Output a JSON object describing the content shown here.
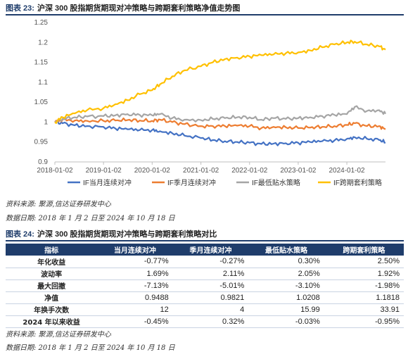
{
  "figure": {
    "tag": "图表 23:",
    "title": "沪深 300 股指期货期现对冲策略与跨期套利策略净值走势图"
  },
  "chart_data": {
    "type": "line",
    "ylim": [
      0.9,
      1.25
    ],
    "yticks": [
      "0.9",
      "0.95",
      "1",
      "1.05",
      "1.1",
      "1.15",
      "1.2",
      "1.25"
    ],
    "yticks_values": [
      0.9,
      0.95,
      1.0,
      1.05,
      1.1,
      1.15,
      1.2,
      1.25
    ],
    "xlim": [
      "2018-01-02",
      "2024-10-18"
    ],
    "xticks": [
      "2018-01-02",
      "2019-01-02",
      "2020-01-02",
      "2021-01-02",
      "2022-01-02",
      "2023-01-02",
      "2024-01-02"
    ],
    "grid": false,
    "legend_position": "bottom",
    "series": [
      {
        "name": "IF当月连续对冲",
        "color": "#4472c4",
        "points": [
          [
            "2018-01-02",
            1.0
          ],
          [
            "2018-03-01",
            0.997
          ],
          [
            "2018-06-01",
            0.992
          ],
          [
            "2018-09-01",
            0.99
          ],
          [
            "2019-01-02",
            0.988
          ],
          [
            "2019-04-01",
            0.984
          ],
          [
            "2019-07-01",
            0.982
          ],
          [
            "2019-10-01",
            0.98
          ],
          [
            "2020-01-02",
            0.98
          ],
          [
            "2020-03-01",
            0.977
          ],
          [
            "2020-06-01",
            0.972
          ],
          [
            "2020-09-01",
            0.966
          ],
          [
            "2021-01-02",
            0.96
          ],
          [
            "2021-04-01",
            0.955
          ],
          [
            "2021-07-01",
            0.952
          ],
          [
            "2021-10-01",
            0.95
          ],
          [
            "2022-01-02",
            0.948
          ],
          [
            "2022-04-01",
            0.945
          ],
          [
            "2022-07-01",
            0.946
          ],
          [
            "2022-10-01",
            0.947
          ],
          [
            "2023-01-02",
            0.948
          ],
          [
            "2023-04-01",
            0.95
          ],
          [
            "2023-07-01",
            0.952
          ],
          [
            "2023-10-01",
            0.954
          ],
          [
            "2024-01-02",
            0.958
          ],
          [
            "2024-03-01",
            0.962
          ],
          [
            "2024-06-01",
            0.958
          ],
          [
            "2024-09-01",
            0.955
          ],
          [
            "2024-10-18",
            0.9488
          ]
        ]
      },
      {
        "name": "IF季月连续对冲",
        "color": "#ed7d31",
        "points": [
          [
            "2018-01-02",
            1.0
          ],
          [
            "2018-03-01",
            1.006
          ],
          [
            "2018-06-01",
            1.004
          ],
          [
            "2018-09-01",
            1.003
          ],
          [
            "2019-01-02",
            1.003
          ],
          [
            "2019-04-01",
            1.004
          ],
          [
            "2019-07-01",
            1.005
          ],
          [
            "2019-10-01",
            1.004
          ],
          [
            "2020-01-02",
            1.003
          ],
          [
            "2020-03-01",
            1.006
          ],
          [
            "2020-06-01",
            1.0
          ],
          [
            "2020-09-01",
            0.995
          ],
          [
            "2021-01-02",
            0.99
          ],
          [
            "2021-04-01",
            0.99
          ],
          [
            "2021-07-01",
            0.99
          ],
          [
            "2021-10-01",
            0.991
          ],
          [
            "2022-01-02",
            0.99
          ],
          [
            "2022-04-01",
            0.985
          ],
          [
            "2022-07-01",
            0.988
          ],
          [
            "2022-10-01",
            0.987
          ],
          [
            "2023-01-02",
            0.985
          ],
          [
            "2023-04-01",
            0.986
          ],
          [
            "2023-07-01",
            0.988
          ],
          [
            "2023-10-01",
            0.99
          ],
          [
            "2024-01-02",
            0.993
          ],
          [
            "2024-03-01",
            0.997
          ],
          [
            "2024-06-01",
            0.99
          ],
          [
            "2024-09-01",
            0.99
          ],
          [
            "2024-10-18",
            0.9821
          ]
        ]
      },
      {
        "name": "IF最低贴水策略",
        "color": "#a5a5a5",
        "points": [
          [
            "2018-01-02",
            1.0
          ],
          [
            "2018-03-01",
            1.008
          ],
          [
            "2018-06-01",
            1.012
          ],
          [
            "2018-09-01",
            1.014
          ],
          [
            "2019-01-02",
            1.015
          ],
          [
            "2019-04-01",
            1.017
          ],
          [
            "2019-07-01",
            1.02
          ],
          [
            "2019-10-01",
            1.018
          ],
          [
            "2020-01-02",
            1.017
          ],
          [
            "2020-03-01",
            1.02
          ],
          [
            "2020-06-01",
            1.01
          ],
          [
            "2020-09-01",
            1.006
          ],
          [
            "2021-01-02",
            1.005
          ],
          [
            "2021-04-01",
            1.008
          ],
          [
            "2021-07-01",
            1.01
          ],
          [
            "2021-10-01",
            1.012
          ],
          [
            "2022-01-02",
            1.012
          ],
          [
            "2022-04-01",
            1.006
          ],
          [
            "2022-07-01",
            1.01
          ],
          [
            "2022-10-01",
            1.008
          ],
          [
            "2023-01-02",
            1.01
          ],
          [
            "2023-04-01",
            1.012
          ],
          [
            "2023-07-01",
            1.015
          ],
          [
            "2023-10-01",
            1.018
          ],
          [
            "2024-01-02",
            1.02
          ],
          [
            "2024-03-01",
            1.038
          ],
          [
            "2024-06-01",
            1.028
          ],
          [
            "2024-09-01",
            1.03
          ],
          [
            "2024-10-18",
            1.0208
          ]
        ]
      },
      {
        "name": "IF跨期套利策略",
        "color": "#ffc000",
        "points": [
          [
            "2018-01-02",
            1.0
          ],
          [
            "2018-03-01",
            1.012
          ],
          [
            "2018-06-01",
            1.022
          ],
          [
            "2018-09-01",
            1.03
          ],
          [
            "2019-01-02",
            1.035
          ],
          [
            "2019-04-01",
            1.045
          ],
          [
            "2019-07-01",
            1.055
          ],
          [
            "2019-10-01",
            1.07
          ],
          [
            "2020-01-02",
            1.08
          ],
          [
            "2020-03-01",
            1.095
          ],
          [
            "2020-06-01",
            1.115
          ],
          [
            "2020-09-01",
            1.13
          ],
          [
            "2021-01-02",
            1.14
          ],
          [
            "2021-04-01",
            1.15
          ],
          [
            "2021-07-01",
            1.158
          ],
          [
            "2021-10-01",
            1.162
          ],
          [
            "2022-01-02",
            1.165
          ],
          [
            "2022-04-01",
            1.168
          ],
          [
            "2022-07-01",
            1.17
          ],
          [
            "2022-10-01",
            1.173
          ],
          [
            "2023-01-02",
            1.175
          ],
          [
            "2023-04-01",
            1.18
          ],
          [
            "2023-07-01",
            1.188
          ],
          [
            "2023-10-01",
            1.195
          ],
          [
            "2024-01-02",
            1.2
          ],
          [
            "2024-03-01",
            1.202
          ],
          [
            "2024-06-01",
            1.195
          ],
          [
            "2024-09-01",
            1.19
          ],
          [
            "2024-10-18",
            1.1818
          ]
        ]
      }
    ]
  },
  "notes": {
    "source1": "资料来源:  聚源,信达证券研发中心",
    "date1": "数据日期:  2018 年 1 月 2 日至 2024 年 10 月 18 日",
    "source2": "资料来源:  聚源,信达证券研发中心",
    "date2": "数据日期:  2018 年 1 月 2 日至 2024 年 10 月 18 日"
  },
  "table": {
    "tag": "图表 24:",
    "title": "沪深 300 股指期货期现对冲策略与跨期套利策略对比",
    "headers": [
      "指标",
      "当月连续对冲",
      "季月连续对冲",
      "最低贴水策略",
      "跨期套利策略"
    ],
    "rows": [
      [
        "年化收益",
        "-0.77%",
        "-0.27%",
        "0.30%",
        "2.50%"
      ],
      [
        "波动率",
        "1.69%",
        "2.11%",
        "2.05%",
        "1.92%"
      ],
      [
        "最大回撤",
        "-7.13%",
        "-5.01%",
        "-3.10%",
        "-1.98%"
      ],
      [
        "净值",
        "0.9488",
        "0.9821",
        "1.0208",
        "1.1818"
      ],
      [
        "年换手次数",
        "12",
        "4",
        "15.99",
        "33.91"
      ],
      [
        "2024 年以来收益",
        "-0.45%",
        "0.32%",
        "-0.03%",
        "-0.95%"
      ]
    ]
  }
}
